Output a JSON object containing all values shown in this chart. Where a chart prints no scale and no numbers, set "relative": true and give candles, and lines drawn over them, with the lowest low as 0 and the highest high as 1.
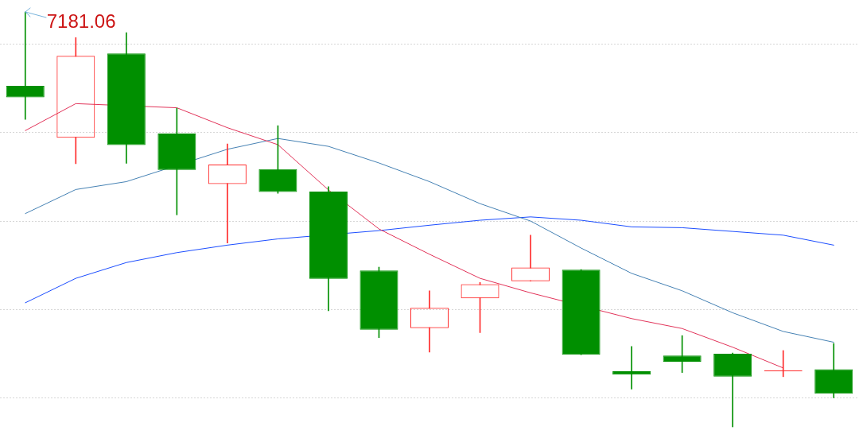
{
  "chart_data": {
    "type": "candlestick",
    "relative": true,
    "categories": [
      null,
      null,
      null,
      null,
      null,
      null,
      null,
      null,
      null,
      null,
      null,
      null,
      null,
      null,
      null,
      null,
      null
    ],
    "ohlc": [
      [
        0.822,
        1,
        0.741,
        0.794
      ],
      [
        0.697,
        0.938,
        0.634,
        0.894
      ],
      [
        0.9,
        0.95,
        0.635,
        0.679
      ],
      [
        0.707,
        0.768,
        0.511,
        0.619
      ],
      [
        0.585,
        0.682,
        0.443,
        0.632
      ],
      [
        0.621,
        0.726,
        0.563,
        0.566
      ],
      [
        0.567,
        0.579,
        0.28,
        0.357
      ],
      [
        0.377,
        0.385,
        0.215,
        0.234
      ],
      [
        0.238,
        0.328,
        0.18,
        0.287
      ],
      [
        0.31,
        0.348,
        0.227,
        0.344
      ],
      [
        0.351,
        0.462,
        0.351,
        0.384
      ],
      [
        0.379,
        0.379,
        0.174,
        0.174
      ],
      [
        0.134,
        0.194,
        0.091,
        0.126
      ],
      [
        0.172,
        0.22,
        0.131,
        0.157
      ],
      [
        0.176,
        0.178,
        0,
        0.121
      ],
      [
        0.134,
        0.184,
        0.121,
        0.135
      ],
      [
        0.139,
        0.201,
        0.07,
        0.08
      ]
    ],
    "colors": [
      "#008f00",
      "#ff2b2b",
      "#008f00",
      "#008f00",
      "#ff2b2b",
      "#008f00",
      "#008f00",
      "#008f00",
      "#ff2b2b",
      "#ff2b2b",
      "#ff2b2b",
      "#008f00",
      "#008f00",
      "#008f00",
      "#008f00",
      "#ff2b2b",
      "#008f00"
    ],
    "series": [
      {
        "type": "line",
        "color": "#e2345a",
        "values": [
          0.714,
          0.779,
          null,
          0.769,
          0.721,
          0.68,
          0.571,
          0.477,
          0.416,
          0.358,
          0.323,
          null,
          0.261,
          0.237,
          0.192,
          0.142,
          null
        ]
      },
      {
        "type": "line",
        "color": "#4682b4",
        "values": [
          0.514,
          0.572,
          0.591,
          null,
          0.669,
          0.695,
          0.676,
          0.636,
          0.591,
          0.538,
          0.496,
          0.431,
          0.37,
          0.328,
          0.275,
          0.23,
          0.204
        ]
      },
      {
        "type": "line",
        "color": "#1b4dff",
        "values": [
          0.299,
          0.358,
          0.396,
          0.42,
          0.438,
          0.453,
          null,
          0.473,
          0.486,
          0.498,
          0.506,
          0.498,
          0.482,
          0.48,
          0.471,
          0.462,
          0.438
        ]
      }
    ],
    "annotations": [
      "7181.06"
    ],
    "grid": "y",
    "marker": "none"
  }
}
